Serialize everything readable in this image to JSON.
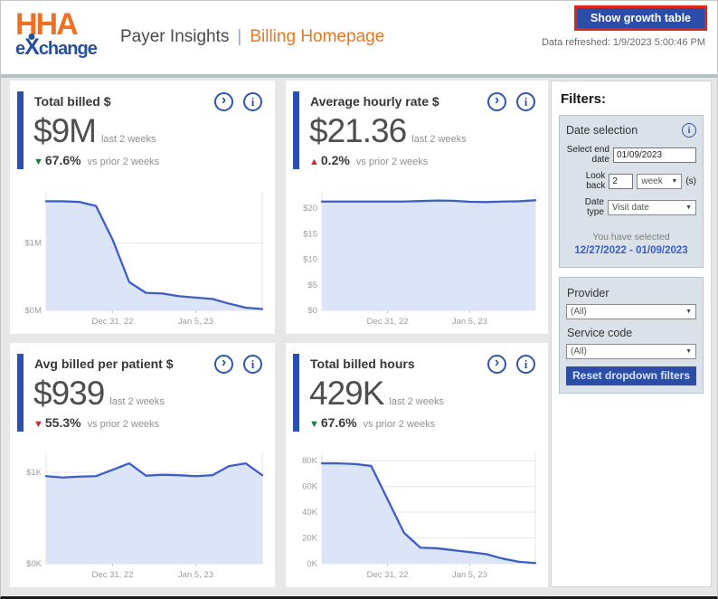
{
  "header": {
    "logo": {
      "hha": "HHA",
      "e": "e",
      "x": "X",
      "change": "change"
    },
    "title": "Payer Insights",
    "separator": "|",
    "subtitle": "Billing Homepage",
    "growth_button_label": "Show growth table",
    "data_refreshed": "Data refreshed: 1/9/2023 5:00:46 PM"
  },
  "icons": {
    "expand": "›",
    "info": "i",
    "caret": "▼"
  },
  "cards": [
    {
      "title": "Total billed $",
      "value": "$9M",
      "value_note": "last 2 weeks",
      "delta_symbol": "▼",
      "delta_value": "67.6%",
      "delta_note": "vs prior 2 weeks",
      "delta_color": "#168039"
    },
    {
      "title": "Average hourly rate $",
      "value": "$21.36",
      "value_note": "last 2 weeks",
      "delta_symbol": "▲",
      "delta_value": "0.2%",
      "delta_note": "vs prior 2 weeks",
      "delta_color": "#c02d26"
    },
    {
      "title": "Avg billed per patient $",
      "value": "$939",
      "value_note": "last 2 weeks",
      "delta_symbol": "▼",
      "delta_value": "55.3%",
      "delta_note": "vs prior 2 weeks",
      "delta_color": "#c02d26"
    },
    {
      "title": "Total billed hours",
      "value": "429K",
      "value_note": "last 2 weeks",
      "delta_symbol": "▼",
      "delta_value": "67.6%",
      "delta_note": "vs prior 2 weeks",
      "delta_color": "#168039"
    }
  ],
  "chart_data": [
    {
      "type": "area",
      "title": "Total billed $",
      "unit": "$M",
      "values": [
        1.62,
        1.62,
        1.61,
        1.55,
        1.05,
        0.42,
        0.26,
        0.25,
        0.21,
        0.19,
        0.17,
        0.1,
        0.04,
        0.02
      ],
      "ylim": [
        0,
        1.76
      ],
      "yticks": [
        {
          "v": 1,
          "label": "$1M"
        },
        {
          "v": 0,
          "label": "$0M"
        }
      ],
      "xticks": [
        {
          "i": 4,
          "label": "Dec 31, 22"
        },
        {
          "i": 9,
          "label": "Jan 5, 23"
        }
      ],
      "line_color": "#3d5ec6",
      "fill_color": "#dce4f7"
    },
    {
      "type": "area",
      "title": "Average hourly rate $",
      "unit": "$",
      "values": [
        21.3,
        21.3,
        21.3,
        21.3,
        21.3,
        21.3,
        21.4,
        21.5,
        21.45,
        21.25,
        21.2,
        21.3,
        21.35,
        21.55
      ],
      "ylim": [
        0,
        23.2
      ],
      "yticks": [
        {
          "v": 20,
          "label": "$20"
        },
        {
          "v": 15,
          "label": "$15"
        },
        {
          "v": 10,
          "label": "$10"
        },
        {
          "v": 5,
          "label": "$5"
        },
        {
          "v": 0,
          "label": "$0"
        }
      ],
      "xticks": [
        {
          "i": 4,
          "label": "Dec 31, 22"
        },
        {
          "i": 9,
          "label": "Jan 5, 23"
        }
      ],
      "line_color": "#3d5ec6",
      "fill_color": "#dce4f7"
    },
    {
      "type": "area",
      "title": "Avg billed per patient $",
      "unit": "$K",
      "values": [
        0.96,
        0.945,
        0.955,
        0.96,
        1.03,
        1.1,
        0.965,
        0.975,
        0.97,
        0.96,
        0.97,
        1.07,
        1.1,
        0.97
      ],
      "ylim": [
        0,
        1.22
      ],
      "yticks": [
        {
          "v": 1,
          "label": "$1K"
        },
        {
          "v": 0,
          "label": "$0K"
        }
      ],
      "xticks": [
        {
          "i": 4,
          "label": "Dec 31, 22"
        },
        {
          "i": 9,
          "label": "Jan 5, 23"
        }
      ],
      "line_color": "#3d5ec6",
      "fill_color": "#dce4f7"
    },
    {
      "type": "area",
      "title": "Total billed hours",
      "unit": "K hours",
      "values": [
        78,
        78,
        77.5,
        76,
        50,
        24,
        12.5,
        12,
        10.5,
        9,
        7.5,
        4,
        1.5,
        0.5
      ],
      "ylim": [
        0,
        86.5
      ],
      "yticks": [
        {
          "v": 80,
          "label": "80K"
        },
        {
          "v": 60,
          "label": "60K"
        },
        {
          "v": 40,
          "label": "40K"
        },
        {
          "v": 20,
          "label": "20K"
        },
        {
          "v": 0,
          "label": "0K",
          "dash": true
        }
      ],
      "xticks": [
        {
          "i": 4,
          "label": "Dec 31, 22"
        },
        {
          "i": 9,
          "label": "Jan 5, 23"
        }
      ],
      "line_color": "#3d5ec6",
      "fill_color": "#dce4f7"
    }
  ],
  "filters": {
    "heading": "Filters:",
    "date_selection": {
      "title": "Date selection",
      "end_date_label": "Select end date",
      "end_date_value": "01/09/2023",
      "look_back_label": "Look back",
      "look_back_value": "2",
      "look_back_unit": "week",
      "look_back_suffix": "(s)",
      "date_type_label": "Date type",
      "date_type_value": "Visit date",
      "selected_caption": "You have selected",
      "selected_range": "12/27/2022 - 01/09/2023"
    },
    "provider_label": "Provider",
    "provider_value": "(All)",
    "service_code_label": "Service code",
    "service_code_value": "(All)",
    "reset_button_label": "Reset dropdown filters"
  },
  "colors": {
    "accent_blue": "#2b50b4",
    "button_blue": "#2b4da8",
    "highlight_red": "#e0261b",
    "brand_orange": "#f26f21",
    "brand_blue": "#27509b",
    "chart_line": "#3d5ec6",
    "chart_fill": "#dce4f7",
    "positive_green": "#168039",
    "negative_red": "#c02d26"
  }
}
